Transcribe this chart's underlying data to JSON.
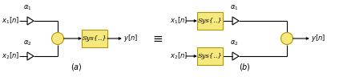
{
  "fig_width": 4.23,
  "fig_height": 0.96,
  "dpi": 100,
  "bg_color": "#ffffff",
  "line_color": "#000000",
  "box_fill": "#f5e87c",
  "box_edge": "#b8960a",
  "sum_fill": "#f5e87c",
  "sum_edge": "#b8960a",
  "text_color": "#000000",
  "font_size": 6.0,
  "caption_font_size": 7.0,
  "diagram_a": {
    "x1_label": "$x_1[n]$",
    "x2_label": "$x_2[n]$",
    "alpha1_label": "$\\alpha_1$",
    "alpha2_label": "$\\alpha_2$",
    "sys_label": "Sys{..}",
    "out_label": "$y[n]$",
    "caption": "$(a)$"
  },
  "diagram_b": {
    "x1_label": "$x_1[n]$",
    "x2_label": "$x_2[n]$",
    "alpha1_label": "$\\alpha_1$",
    "alpha2_label": "$\\alpha_2$",
    "sys1_label": "Sys{..}",
    "sys2_label": "Sys{..}",
    "out_label": "$y[n]$",
    "caption": "$(b)$"
  },
  "equiv_label": "$\\equiv$"
}
